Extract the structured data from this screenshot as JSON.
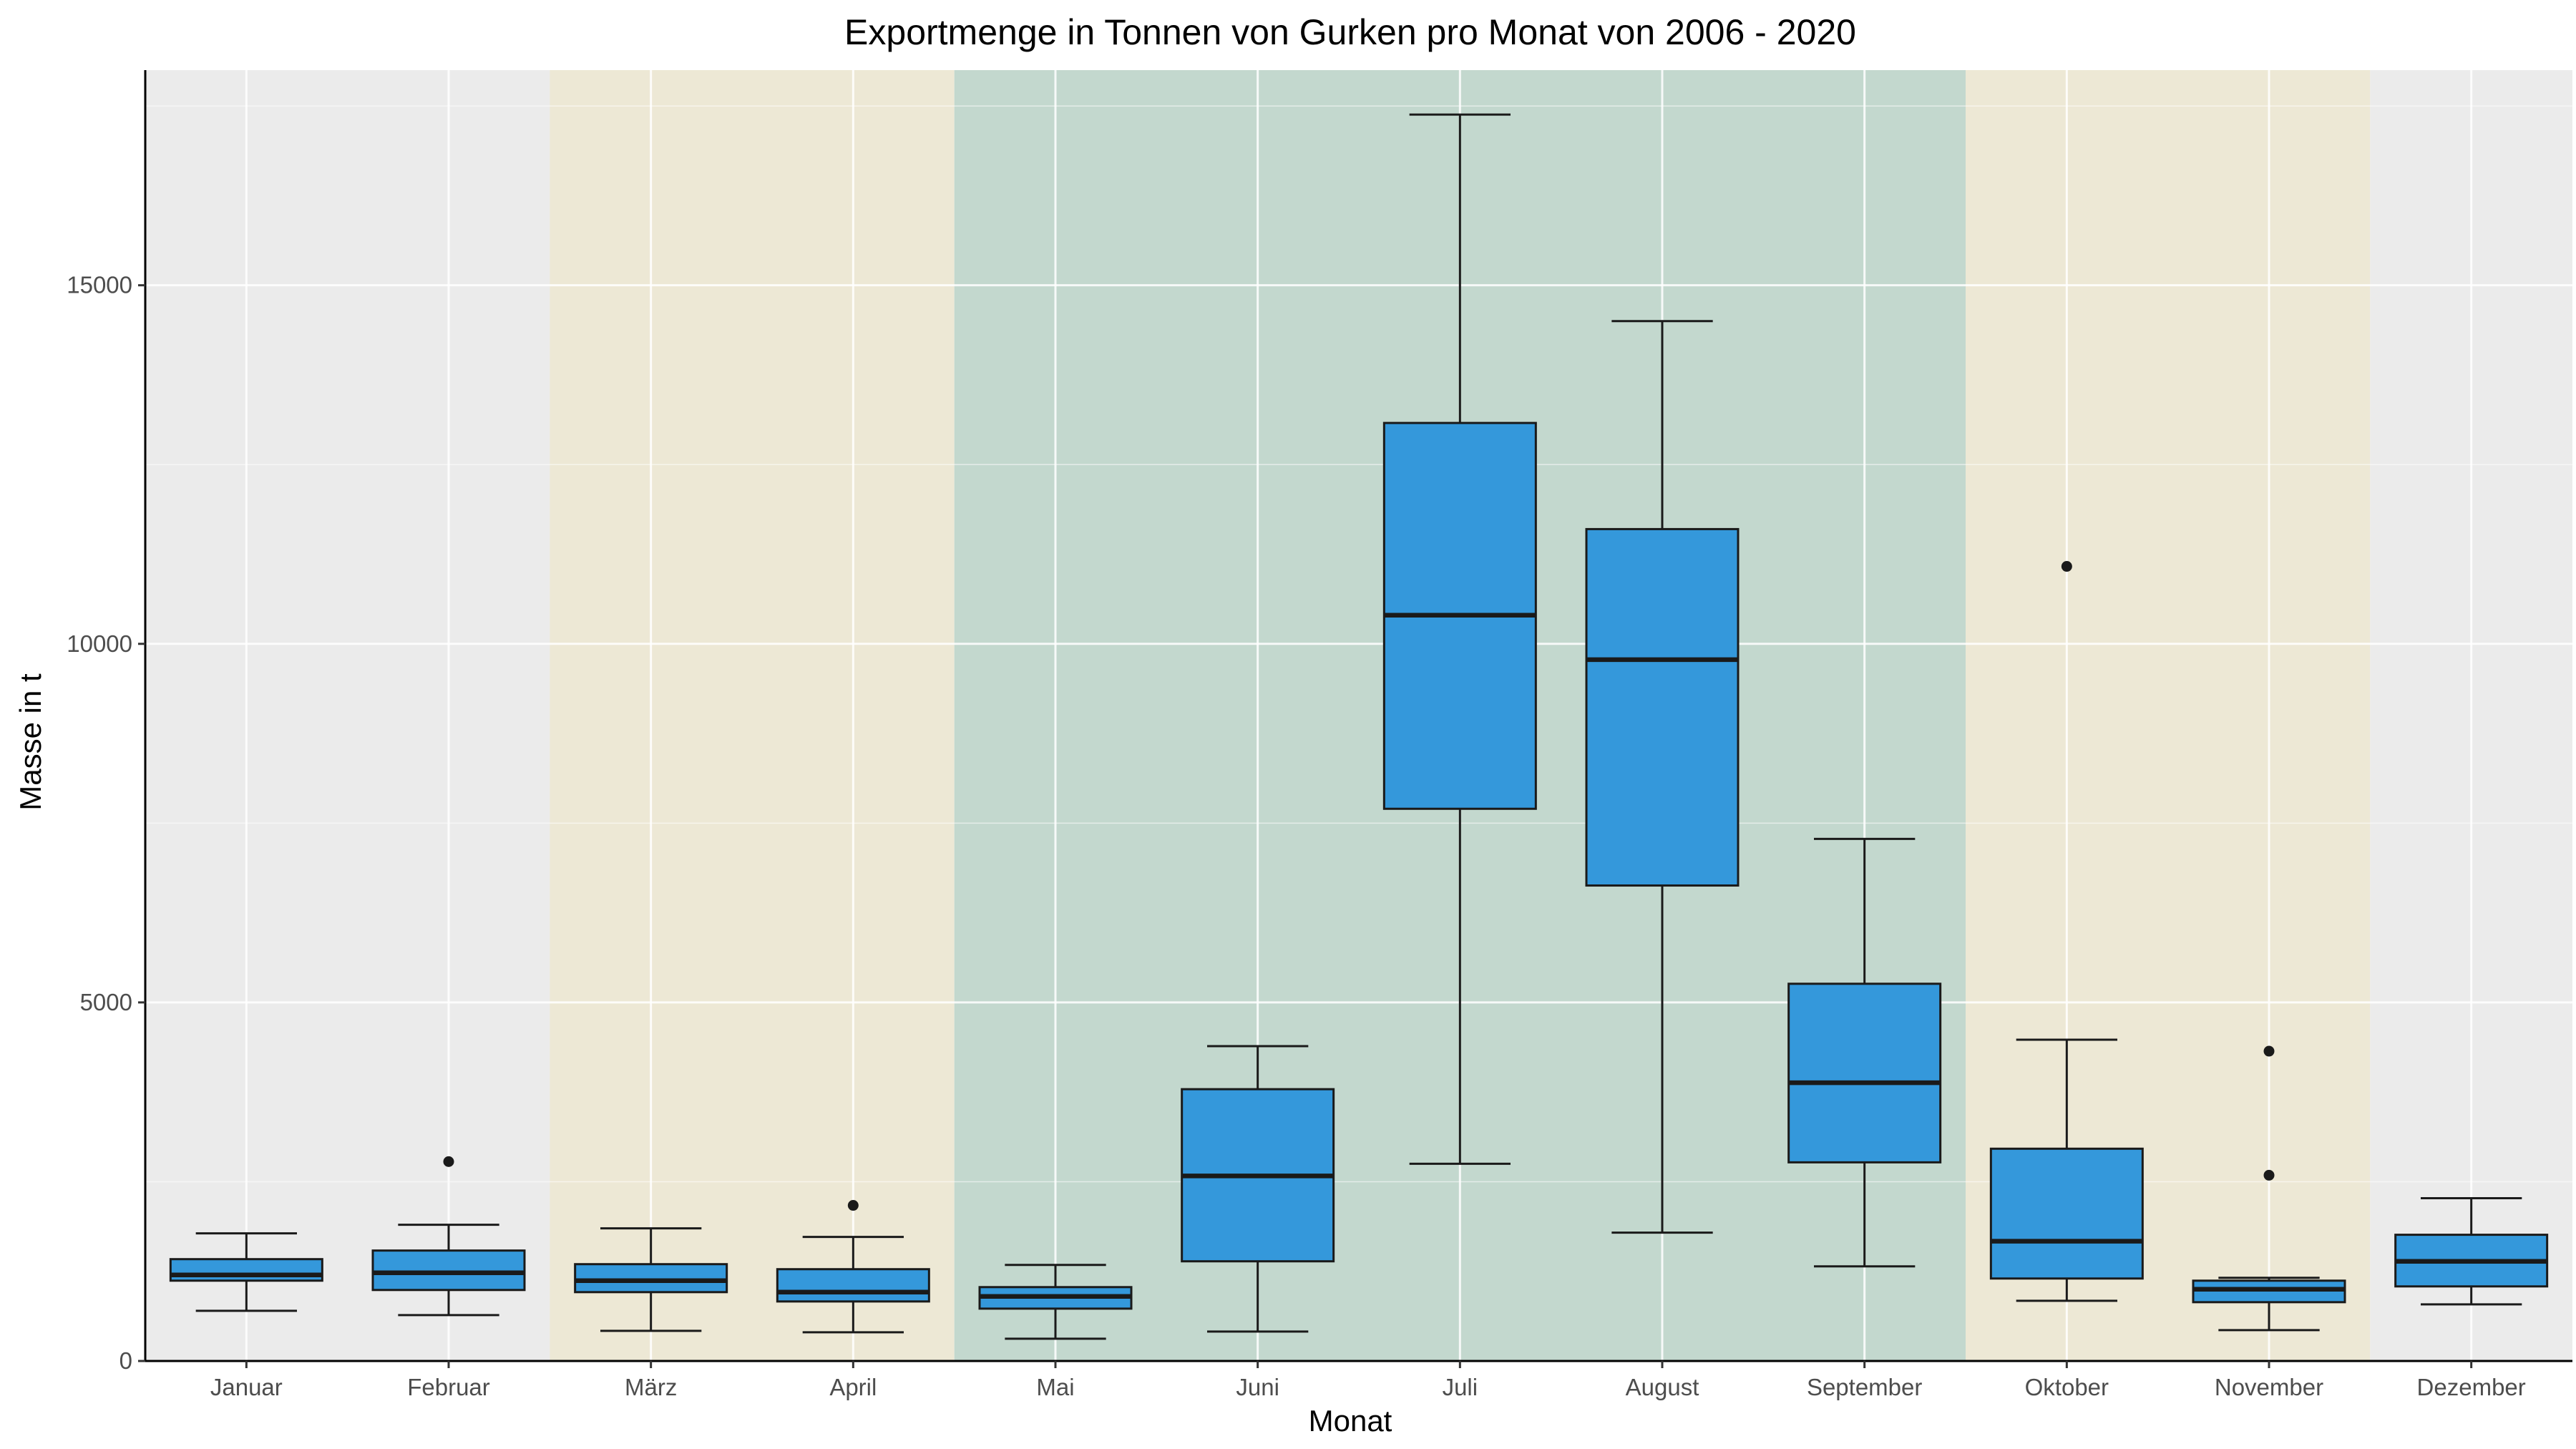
{
  "chart_data": {
    "type": "boxplot",
    "title": "Exportmenge in Tonnen von Gurken pro Monat von 2006 - 2020",
    "xlabel": "Monat",
    "ylabel": "Masse in t",
    "ylim": [
      0,
      18000
    ],
    "y_ticks": [
      0,
      5000,
      10000,
      15000
    ],
    "y_tick_labels": [
      "0",
      "5000",
      "10000",
      "15000"
    ],
    "y_minor_ticks": [
      2500,
      7500,
      12500,
      17500
    ],
    "grid": true,
    "box_color": "#3498db",
    "season_bands": [
      {
        "from": "Januar",
        "to": "Februar",
        "color": "#ebebeb"
      },
      {
        "from": "März",
        "to": "April",
        "color": "#ede8d5"
      },
      {
        "from": "Mai",
        "to": "September",
        "color": "#c3d8ce"
      },
      {
        "from": "Oktober",
        "to": "November",
        "color": "#ede8d5"
      },
      {
        "from": "Dezember",
        "to": "Dezember",
        "color": "#ebebeb"
      }
    ],
    "categories": [
      "Januar",
      "Februar",
      "März",
      "April",
      "Mai",
      "Juni",
      "Juli",
      "August",
      "September",
      "Oktober",
      "November",
      "Dezember"
    ],
    "series": [
      {
        "category": "Januar",
        "whisker_low": 700,
        "q1": 1120,
        "median": 1200,
        "q3": 1420,
        "whisker_high": 1780,
        "outliers": []
      },
      {
        "category": "Februar",
        "whisker_low": 640,
        "q1": 990,
        "median": 1230,
        "q3": 1540,
        "whisker_high": 1900,
        "outliers": [
          2780
        ]
      },
      {
        "category": "März",
        "whisker_low": 420,
        "q1": 960,
        "median": 1120,
        "q3": 1350,
        "whisker_high": 1850,
        "outliers": []
      },
      {
        "category": "April",
        "whisker_low": 400,
        "q1": 830,
        "median": 960,
        "q3": 1280,
        "whisker_high": 1730,
        "outliers": [
          2170
        ]
      },
      {
        "category": "Mai",
        "whisker_low": 310,
        "q1": 730,
        "median": 900,
        "q3": 1030,
        "whisker_high": 1340,
        "outliers": []
      },
      {
        "category": "Juni",
        "whisker_low": 410,
        "q1": 1390,
        "median": 2580,
        "q3": 3790,
        "whisker_high": 4390,
        "outliers": []
      },
      {
        "category": "Juli",
        "whisker_low": 2750,
        "q1": 7700,
        "median": 10400,
        "q3": 13080,
        "whisker_high": 17380,
        "outliers": []
      },
      {
        "category": "August",
        "whisker_low": 1790,
        "q1": 6630,
        "median": 9780,
        "q3": 11600,
        "whisker_high": 14500,
        "outliers": []
      },
      {
        "category": "September",
        "whisker_low": 1320,
        "q1": 2770,
        "median": 3880,
        "q3": 5260,
        "whisker_high": 7280,
        "outliers": []
      },
      {
        "category": "Oktober",
        "whisker_low": 840,
        "q1": 1150,
        "median": 1670,
        "q3": 2960,
        "whisker_high": 4480,
        "outliers": [
          11080
        ]
      },
      {
        "category": "November",
        "whisker_low": 430,
        "q1": 820,
        "median": 1000,
        "q3": 1120,
        "whisker_high": 1160,
        "outliers": [
          2590,
          4320
        ]
      },
      {
        "category": "Dezember",
        "whisker_low": 790,
        "q1": 1040,
        "median": 1390,
        "q3": 1760,
        "whisker_high": 2270,
        "outliers": []
      }
    ]
  }
}
